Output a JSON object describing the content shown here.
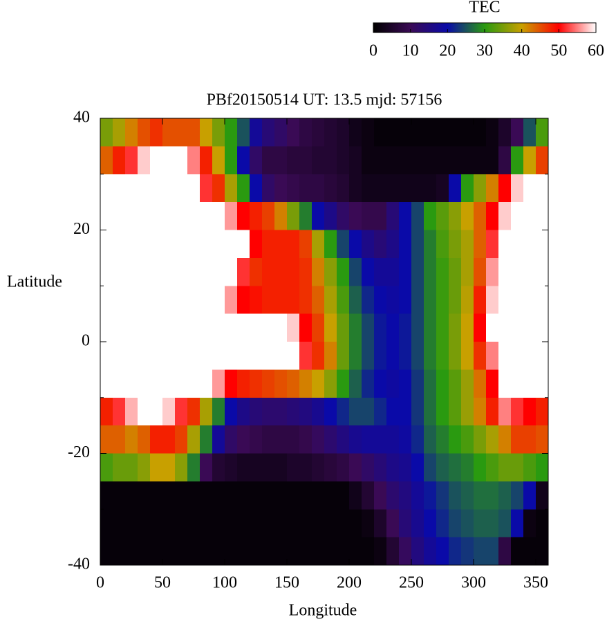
{
  "chart_data": {
    "type": "heatmap",
    "title": "PBf20150514  UT: 13.5  mjd: 57156",
    "x_label": "Longitude",
    "y_label": "Latitude",
    "xbins": [
      0,
      10,
      20,
      30,
      40,
      50,
      60,
      70,
      80,
      90,
      100,
      110,
      120,
      130,
      140,
      150,
      160,
      170,
      180,
      190,
      200,
      210,
      220,
      230,
      240,
      250,
      260,
      270,
      280,
      290,
      300,
      310,
      320,
      330,
      340,
      350,
      360
    ],
    "ybins": [
      40,
      35,
      30,
      25,
      20,
      15,
      10,
      5,
      0,
      -5,
      -10,
      -15,
      -20,
      -25,
      -30,
      -35,
      -40
    ],
    "z": [
      [
        35,
        38,
        42,
        45,
        47,
        45,
        45,
        45,
        40,
        35,
        30,
        25,
        18,
        14,
        12,
        10,
        8,
        7,
        6,
        5,
        3,
        2,
        1,
        1,
        1,
        1,
        1,
        1,
        1,
        1,
        1,
        2,
        5,
        10,
        25,
        32
      ],
      [
        44,
        48,
        52,
        58,
        60,
        60,
        60,
        55,
        48,
        40,
        30,
        20,
        12,
        8,
        8,
        7,
        7,
        6,
        6,
        5,
        4,
        2,
        2,
        2,
        2,
        2,
        2,
        2,
        2,
        2,
        2,
        2,
        8,
        30,
        40,
        46
      ],
      [
        60,
        60,
        60,
        60,
        60,
        60,
        60,
        60,
        52,
        47,
        38,
        30,
        20,
        12,
        10,
        9,
        8,
        8,
        7,
        6,
        4,
        3,
        3,
        3,
        3,
        3,
        3,
        4,
        20,
        30,
        36,
        42,
        50,
        58,
        60,
        60
      ],
      [
        60,
        60,
        60,
        60,
        60,
        60,
        60,
        60,
        60,
        60,
        56,
        50,
        48,
        46,
        42,
        35,
        28,
        20,
        16,
        12,
        10,
        9,
        9,
        14,
        20,
        24,
        30,
        33,
        36,
        40,
        44,
        50,
        58,
        60,
        60,
        60
      ],
      [
        60,
        60,
        60,
        60,
        60,
        60,
        60,
        60,
        60,
        60,
        60,
        60,
        50,
        48,
        48,
        48,
        46,
        38,
        30,
        24,
        20,
        16,
        14,
        16,
        20,
        24,
        28,
        32,
        35,
        38,
        44,
        52,
        60,
        60,
        60,
        60
      ],
      [
        60,
        60,
        60,
        60,
        60,
        60,
        60,
        60,
        60,
        60,
        60,
        52,
        47,
        48,
        48,
        48,
        47,
        42,
        36,
        30,
        24,
        20,
        18,
        18,
        20,
        24,
        28,
        31,
        34,
        38,
        45,
        56,
        60,
        60,
        60,
        60
      ],
      [
        60,
        60,
        60,
        60,
        60,
        60,
        60,
        60,
        60,
        60,
        56,
        50,
        49,
        48,
        48,
        48,
        47,
        44,
        38,
        32,
        26,
        22,
        20,
        19,
        20,
        24,
        28,
        31,
        34,
        39,
        48,
        58,
        60,
        60,
        60,
        60
      ],
      [
        60,
        60,
        60,
        60,
        60,
        60,
        60,
        60,
        60,
        60,
        60,
        60,
        60,
        60,
        60,
        58,
        50,
        46,
        40,
        34,
        28,
        24,
        21,
        20,
        21,
        24,
        28,
        31,
        35,
        40,
        50,
        60,
        60,
        60,
        60,
        60
      ],
      [
        60,
        60,
        60,
        60,
        60,
        60,
        60,
        60,
        60,
        60,
        60,
        60,
        60,
        60,
        60,
        60,
        52,
        47,
        42,
        34,
        28,
        24,
        21,
        20,
        21,
        24,
        28,
        31,
        35,
        40,
        47,
        55,
        60,
        60,
        60,
        60
      ],
      [
        60,
        60,
        60,
        60,
        60,
        60,
        60,
        60,
        60,
        56,
        50,
        48,
        47,
        46,
        45,
        44,
        42,
        40,
        36,
        30,
        26,
        22,
        20,
        19,
        20,
        23,
        27,
        30,
        33,
        37,
        43,
        50,
        60,
        60,
        60,
        60
      ],
      [
        48,
        52,
        57,
        60,
        60,
        58,
        52,
        47,
        38,
        28,
        20,
        16,
        14,
        13,
        13,
        14,
        15,
        17,
        20,
        22,
        24,
        24,
        22,
        20,
        20,
        23,
        27,
        30,
        33,
        37,
        42,
        48,
        55,
        52,
        50,
        48
      ],
      [
        44,
        44,
        42,
        44,
        48,
        48,
        46,
        38,
        28,
        18,
        12,
        10,
        9,
        8,
        8,
        8,
        9,
        11,
        13,
        15,
        17,
        18,
        18,
        18,
        19,
        22,
        26,
        28,
        30,
        32,
        35,
        38,
        42,
        46,
        46,
        45
      ],
      [
        32,
        34,
        34,
        36,
        40,
        40,
        36,
        28,
        10,
        6,
        5,
        4,
        4,
        4,
        4,
        5,
        5,
        6,
        7,
        8,
        10,
        12,
        14,
        16,
        17,
        20,
        24,
        26,
        27,
        28,
        30,
        32,
        34,
        34,
        32,
        30
      ],
      [
        1,
        1,
        1,
        1,
        1,
        1,
        1,
        1,
        1,
        1,
        1,
        1,
        1,
        1,
        1,
        1,
        1,
        1,
        1,
        1,
        3,
        6,
        10,
        13,
        15,
        18,
        21,
        23,
        25,
        26,
        27,
        27,
        26,
        24,
        20,
        3
      ],
      [
        1,
        1,
        1,
        1,
        1,
        1,
        1,
        1,
        1,
        1,
        1,
        1,
        1,
        1,
        1,
        1,
        1,
        1,
        1,
        1,
        1,
        2,
        5,
        10,
        14,
        17,
        20,
        22,
        24,
        25,
        26,
        26,
        25,
        20,
        2,
        1
      ],
      [
        1,
        1,
        1,
        1,
        1,
        1,
        1,
        1,
        1,
        1,
        1,
        1,
        1,
        1,
        1,
        1,
        1,
        1,
        1,
        1,
        1,
        1,
        2,
        6,
        11,
        15,
        18,
        20,
        22,
        23,
        24,
        24,
        8,
        1,
        1,
        1
      ]
    ],
    "xlim": [
      0,
      360
    ],
    "xticks": [
      0,
      50,
      100,
      150,
      200,
      250,
      300,
      350
    ],
    "ylim": [
      -40,
      40
    ],
    "yticks": [
      -40,
      -20,
      0,
      20,
      40
    ],
    "yminorticks": [
      -30,
      -10,
      10,
      30
    ],
    "colorbar": {
      "label": "TEC",
      "lim": [
        0,
        60
      ],
      "ticks": [
        0,
        10,
        20,
        30,
        40,
        50,
        60
      ],
      "colors": [
        "#000000",
        "#3a0a55",
        "#0a0aa8",
        "#2a9a10",
        "#c8a000",
        "#ff0000",
        "#ffffff"
      ]
    }
  }
}
